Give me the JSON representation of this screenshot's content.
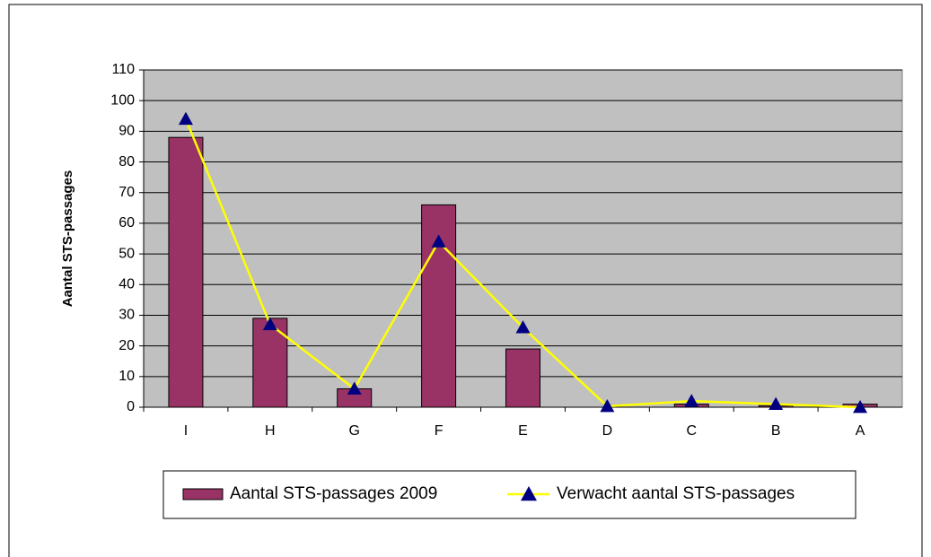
{
  "chart_data": {
    "type": "bar_line",
    "y_label": "Aantal STS-passages",
    "categories": [
      "I",
      "H",
      "G",
      "F",
      "E",
      "D",
      "C",
      "B",
      "A"
    ],
    "series": [
      {
        "name": "Aantal STS-passages 2009",
        "type": "bar",
        "color": "#993366",
        "values": [
          88,
          29,
          6,
          66,
          19,
          0,
          1,
          0.5,
          1
        ]
      },
      {
        "name": "Verwacht aantal STS-passages",
        "type": "line",
        "color": "#ffff00",
        "marker_color": "#000080",
        "values": [
          94,
          27,
          6,
          54,
          26,
          0.3,
          2,
          1,
          0
        ]
      }
    ],
    "ylim": [
      0,
      110
    ],
    "yticks": [
      0,
      10,
      20,
      30,
      40,
      50,
      60,
      70,
      80,
      90,
      100,
      110
    ],
    "grid": true,
    "legend": "bottom"
  }
}
